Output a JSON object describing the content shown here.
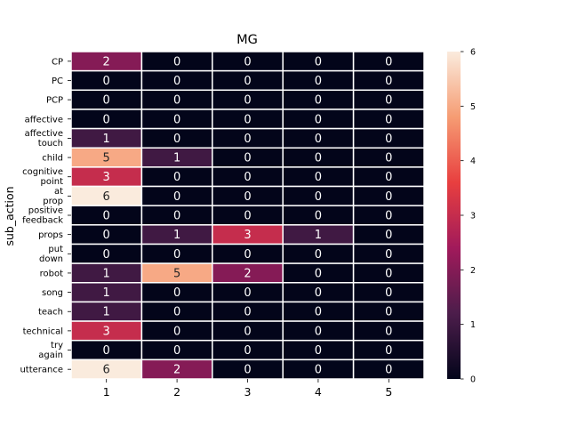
{
  "chart_data": {
    "type": "heatmap",
    "title": "MG",
    "ylabel": "sub_action",
    "xlabel": "",
    "x_categories": [
      "1",
      "2",
      "3",
      "4",
      "5"
    ],
    "y_categories": [
      [
        "CP"
      ],
      [
        "PC"
      ],
      [
        "PCP"
      ],
      [
        "affective"
      ],
      [
        "affective",
        "touch"
      ],
      [
        "child"
      ],
      [
        "cognitive",
        "point"
      ],
      [
        "at",
        "prop"
      ],
      [
        "positive",
        "feedback"
      ],
      [
        "props"
      ],
      [
        "put",
        "down"
      ],
      [
        "robot"
      ],
      [
        "song"
      ],
      [
        "teach"
      ],
      [
        "technical"
      ],
      [
        "try",
        "again"
      ],
      [
        "utterance"
      ]
    ],
    "values": [
      [
        2,
        0,
        0,
        0,
        0
      ],
      [
        0,
        0,
        0,
        0,
        0
      ],
      [
        0,
        0,
        0,
        0,
        0
      ],
      [
        0,
        0,
        0,
        0,
        0
      ],
      [
        1,
        0,
        0,
        0,
        0
      ],
      [
        5,
        1,
        0,
        0,
        0
      ],
      [
        3,
        0,
        0,
        0,
        0
      ],
      [
        6,
        0,
        0,
        0,
        0
      ],
      [
        0,
        0,
        0,
        0,
        0
      ],
      [
        0,
        1,
        3,
        1,
        0
      ],
      [
        0,
        0,
        0,
        0,
        0
      ],
      [
        1,
        5,
        2,
        0,
        0
      ],
      [
        1,
        0,
        0,
        0,
        0
      ],
      [
        1,
        0,
        0,
        0,
        0
      ],
      [
        3,
        0,
        0,
        0,
        0
      ],
      [
        0,
        0,
        0,
        0,
        0
      ],
      [
        6,
        2,
        0,
        0,
        0
      ]
    ],
    "colorbar": {
      "range": [
        0,
        6
      ],
      "ticks": [
        "0",
        "1",
        "2",
        "3",
        "4",
        "5",
        "6"
      ],
      "colors": [
        "#03051a",
        "#4c1d4b",
        "#a11a5b",
        "#e83f3f",
        "#f69c73",
        "#faebdd"
      ]
    },
    "annotate": true,
    "gridlines": "white cell borders"
  }
}
